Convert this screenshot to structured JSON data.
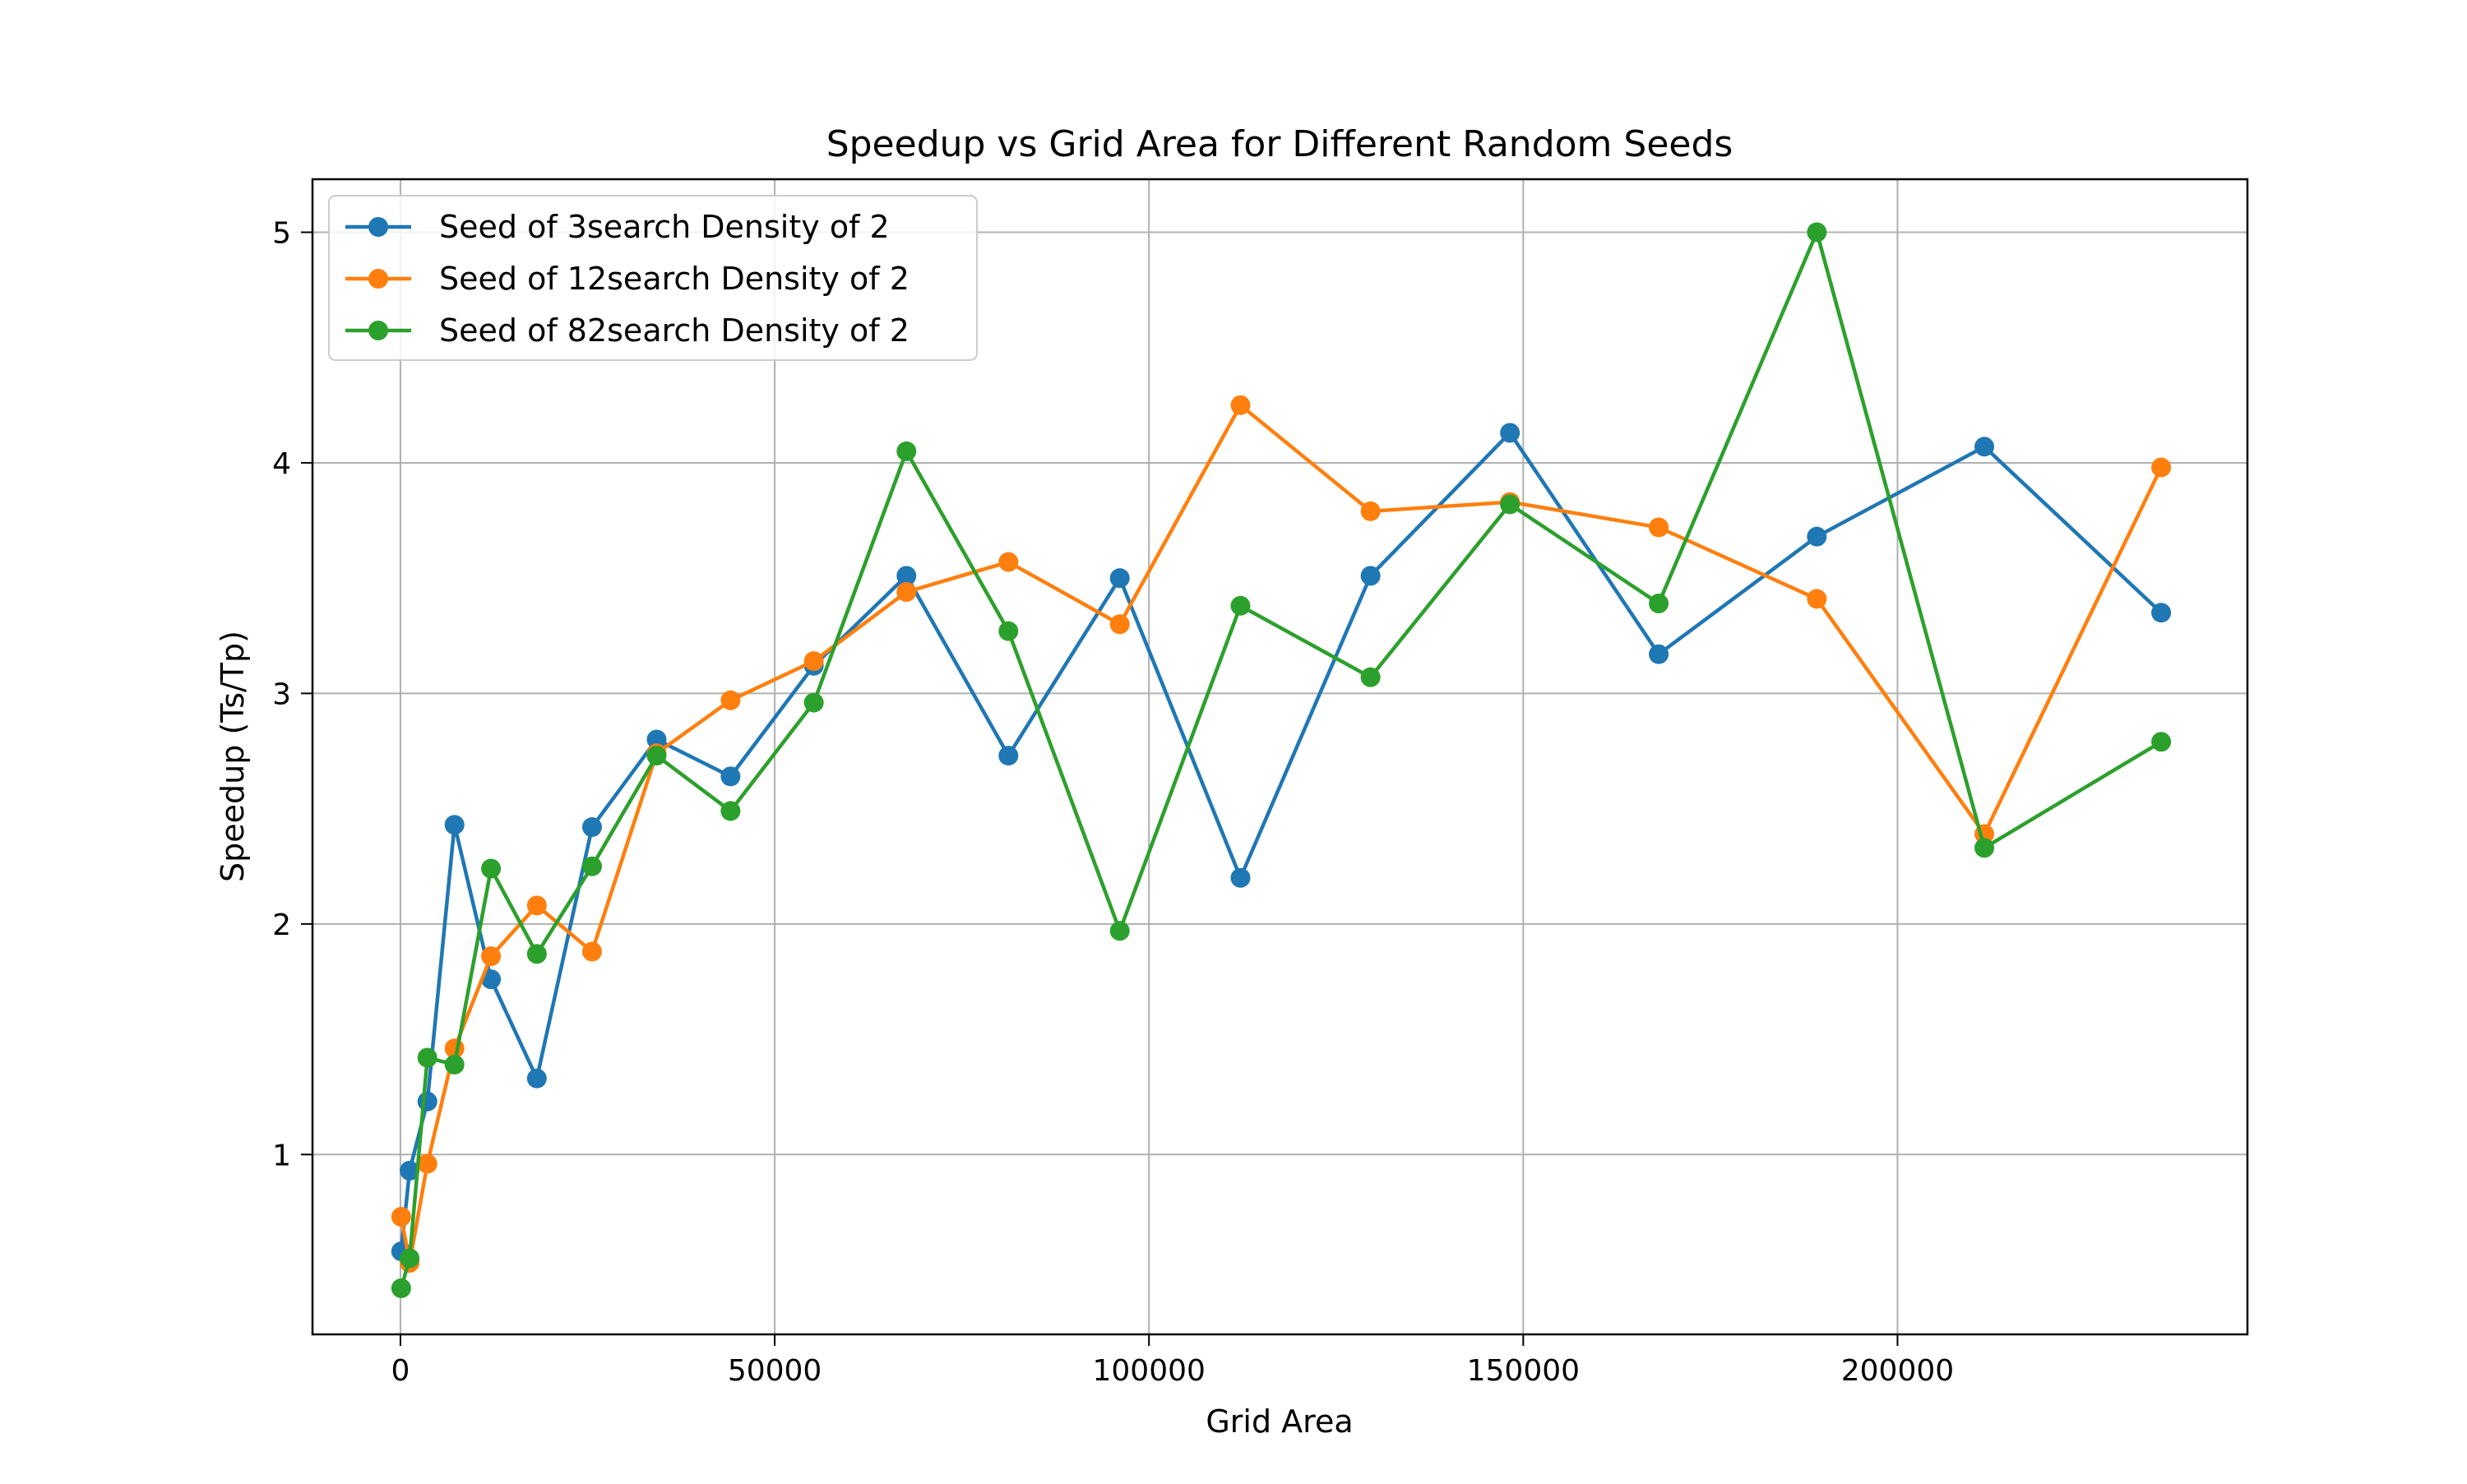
{
  "chart_data": {
    "type": "line",
    "title": "Speedup vs Grid Area for Different Random Seeds",
    "xlabel": "Grid Area",
    "ylabel": "Speedup (Ts/Tp)",
    "xlim": [
      -11750,
      246750
    ],
    "ylim": [
      0.22,
      5.23
    ],
    "xticks": [
      0,
      50000,
      100000,
      150000,
      200000
    ],
    "xtick_labels": [
      "0",
      "50000",
      "100000",
      "150000",
      "200000"
    ],
    "yticks": [
      1,
      2,
      3,
      4,
      5
    ],
    "ytick_labels": [
      "1",
      "2",
      "3",
      "4",
      "5"
    ],
    "grid": true,
    "legend_position": "upper-left",
    "x": [
      100,
      1225,
      3600,
      7225,
      12100,
      18225,
      25600,
      34225,
      44100,
      55225,
      67600,
      81225,
      96100,
      112225,
      129600,
      148225,
      168100,
      189225,
      211600,
      235225
    ],
    "series": [
      {
        "name": "Seed of 3search Density of 2",
        "color": "#1f77b4",
        "values": [
          0.58,
          0.93,
          1.23,
          2.43,
          1.76,
          1.33,
          2.42,
          2.8,
          2.64,
          3.12,
          3.51,
          2.73,
          3.5,
          2.2,
          3.51,
          4.13,
          3.17,
          3.68,
          4.07,
          3.35
        ]
      },
      {
        "name": "Seed of 12search Density of 2",
        "color": "#ff7f0e",
        "values": [
          0.73,
          0.53,
          0.96,
          1.46,
          1.86,
          2.08,
          1.88,
          2.74,
          2.97,
          3.14,
          3.44,
          3.57,
          3.3,
          4.25,
          3.79,
          3.83,
          3.72,
          3.41,
          2.39,
          3.98
        ]
      },
      {
        "name": "Seed of 82search Density of 2",
        "color": "#2ca02c",
        "values": [
          0.42,
          0.55,
          1.42,
          1.39,
          2.24,
          1.87,
          2.25,
          2.73,
          2.49,
          2.96,
          4.05,
          3.27,
          1.97,
          3.38,
          3.07,
          3.82,
          3.39,
          5.0,
          2.33,
          2.79
        ]
      }
    ]
  }
}
